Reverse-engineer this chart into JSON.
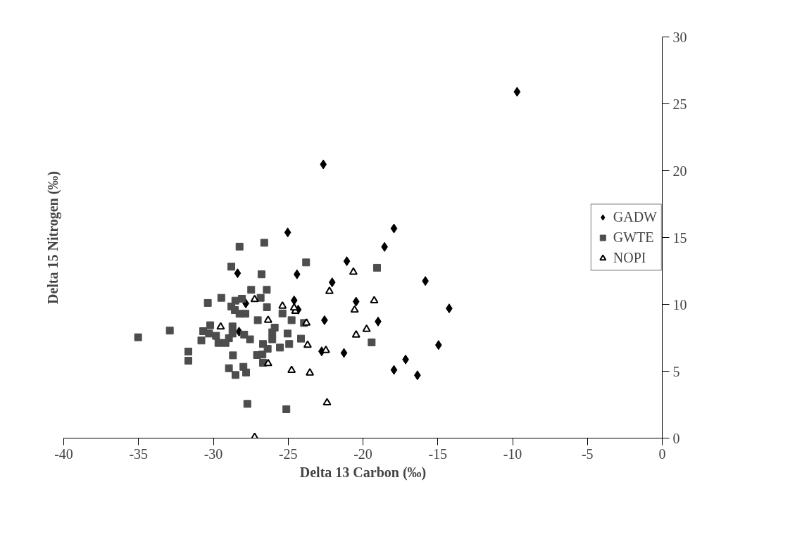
{
  "chart_data": {
    "type": "scatter",
    "xlabel": "Delta 13 Carbon (‰)",
    "ylabel": "Delta 15 Nitrogen (‰)",
    "xlim": [
      -40,
      0
    ],
    "ylim": [
      0,
      30
    ],
    "xticks": [
      -40,
      -35,
      -30,
      -25,
      -20,
      -15,
      -10,
      -5,
      0
    ],
    "yticks": [
      0,
      5,
      10,
      15,
      20,
      25,
      30
    ],
    "grid": false,
    "legend": "right",
    "series": [
      {
        "name": "GADW",
        "color": "#000000",
        "marker": "diamond",
        "x": [
          -9.7,
          -22.65,
          -25.03,
          -17.93,
          -18.56,
          -21.08,
          -24.41,
          -22.06,
          -15.83,
          -24.6,
          -20.46,
          -24.33,
          -14.24,
          -22.57,
          -18.99,
          -22.76,
          -21.27,
          -14.95,
          -17.15,
          -17.93,
          -16.36,
          -28.38,
          -27.83,
          -28.28
        ],
        "values": [
          25.9,
          20.47,
          15.38,
          15.68,
          14.3,
          13.23,
          12.25,
          11.65,
          11.75,
          10.3,
          10.21,
          9.61,
          9.7,
          8.82,
          8.72,
          6.49,
          6.37,
          6.96,
          5.88,
          5.1,
          4.7,
          12.33,
          10.07,
          7.96
        ]
      },
      {
        "name": "GWTE",
        "color": "#4d4d4d",
        "marker": "square",
        "x": [
          -28.25,
          -26.6,
          -23.8,
          -28.8,
          -26.78,
          -27.47,
          -26.43,
          -29.47,
          -30.37,
          -26.84,
          -28.09,
          -28.53,
          -28.8,
          -26.42,
          -28.56,
          -28.25,
          -27.86,
          -27.03,
          -24.77,
          -25.38,
          -23.94,
          -25.9,
          -26.06,
          -26.06,
          -25.04,
          -24.14,
          -24.93,
          -25.55,
          -26.68,
          -26.37,
          -26.72,
          -27.08,
          -26.68,
          -28.69,
          -28.96,
          -28.52,
          -27.99,
          -27.81,
          -27.73,
          -25.12,
          -31.67,
          -31.67,
          -35.03,
          -32.91,
          -30.21,
          -30.68,
          -30.29,
          -29.82,
          -30.8,
          -29.66,
          -29.19,
          -28.96,
          -28.72,
          -28.72,
          -27.94,
          -27.55,
          -19.06,
          -19.42
        ],
        "values": [
          14.32,
          14.61,
          13.14,
          12.82,
          12.25,
          11.09,
          11.09,
          10.49,
          10.11,
          10.49,
          10.42,
          10.28,
          9.84,
          9.79,
          9.58,
          9.3,
          9.3,
          8.82,
          8.82,
          9.32,
          8.61,
          8.26,
          7.91,
          7.39,
          7.82,
          7.44,
          7.04,
          6.77,
          7.04,
          6.68,
          6.25,
          6.21,
          5.63,
          6.19,
          5.23,
          4.72,
          5.33,
          4.91,
          2.56,
          2.16,
          6.47,
          5.79,
          7.54,
          8.04,
          8.44,
          8.0,
          7.82,
          7.65,
          7.3,
          7.12,
          7.12,
          7.47,
          8.35,
          7.82,
          7.74,
          7.39,
          12.74,
          7.16
        ]
      },
      {
        "name": "NOPI",
        "color": "#000000",
        "marker": "triangle",
        "x": [
          -27.24,
          -29.51,
          -26.34,
          -25.38,
          -24.52,
          -24.6,
          -23.78,
          -23.7,
          -22.48,
          -26.34,
          -24.77,
          -23.55,
          -22.4,
          -27.24,
          -22.24,
          -20.64,
          -19.25,
          -20.56,
          -19.76,
          -20.46
        ],
        "values": [
          10.37,
          8.32,
          8.82,
          9.88,
          9.49,
          9.75,
          8.61,
          6.95,
          6.56,
          5.58,
          5.07,
          4.88,
          2.65,
          0.07,
          10.98,
          12.42,
          10.28,
          9.58,
          8.14,
          7.72
        ]
      }
    ]
  }
}
